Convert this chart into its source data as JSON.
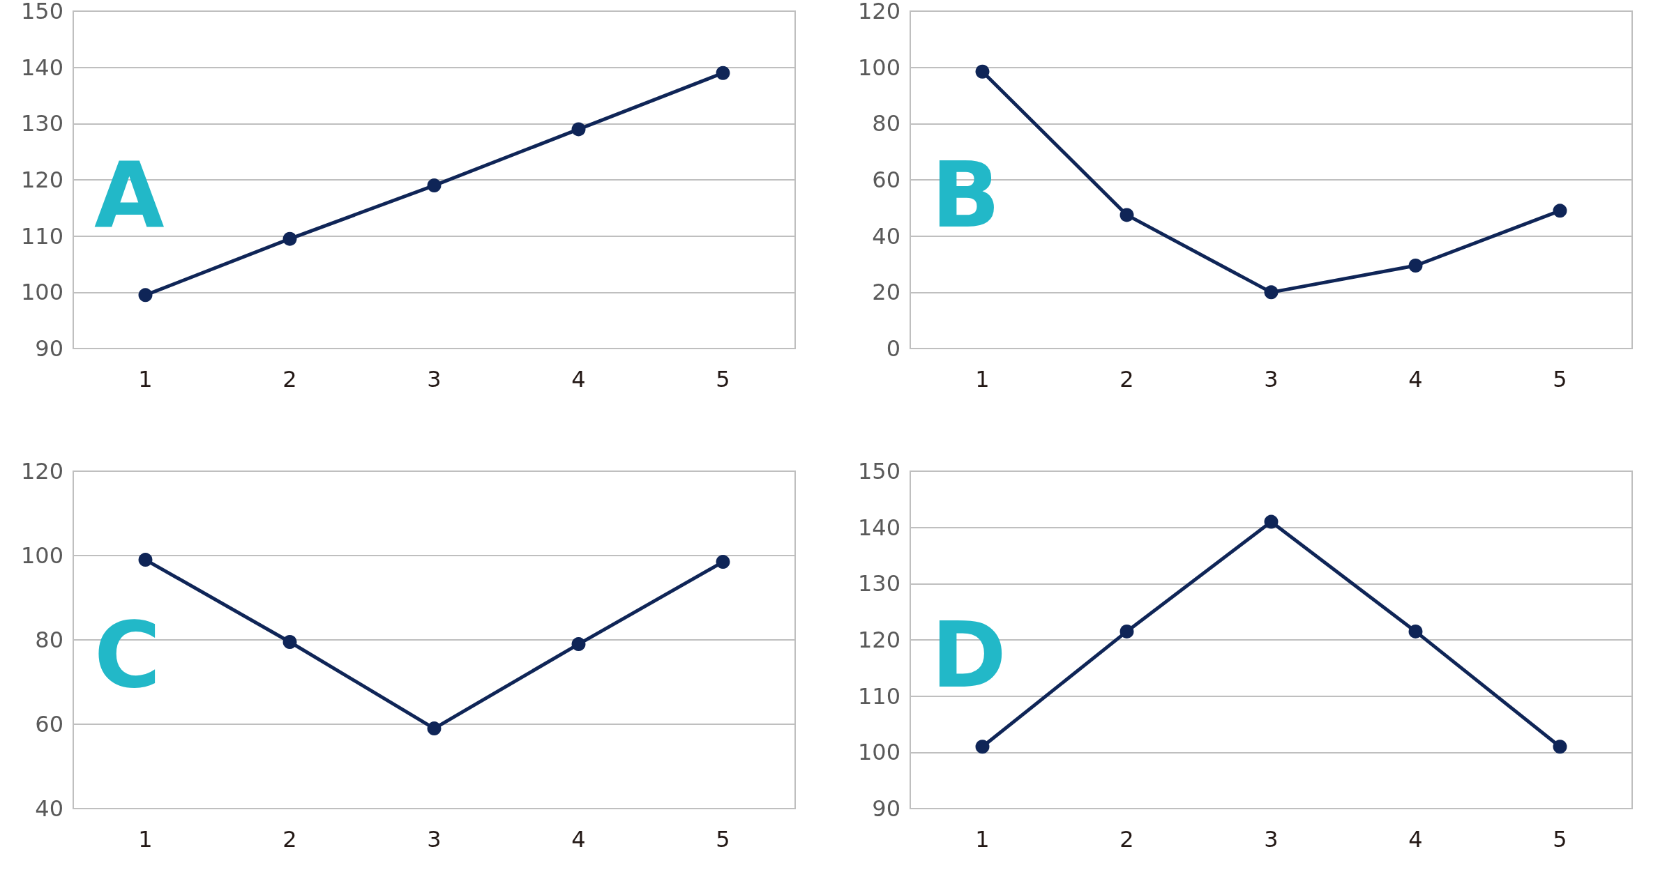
{
  "chart_data": [
    {
      "type": "line",
      "categories": [
        "1",
        "2",
        "3",
        "4",
        "5"
      ],
      "values": [
        99.5,
        109.5,
        119,
        129,
        139
      ],
      "color": "#0f2557",
      "ylim": [
        90,
        150
      ],
      "yticks": [
        90,
        100,
        110,
        120,
        130,
        140,
        150
      ],
      "grid": "y",
      "marker": "circle",
      "line_style": "solid",
      "annotations": [
        "A"
      ]
    },
    {
      "type": "line",
      "categories": [
        "1",
        "2",
        "3",
        "4",
        "5"
      ],
      "values": [
        98.5,
        47.5,
        20,
        29.5,
        49
      ],
      "color": "#0f2557",
      "ylim": [
        0,
        120
      ],
      "yticks": [
        0,
        20,
        40,
        60,
        80,
        100,
        120
      ],
      "grid": "y",
      "marker": "circle",
      "line_style": "solid",
      "annotations": [
        "B"
      ]
    },
    {
      "type": "line",
      "categories": [
        "1",
        "2",
        "3",
        "4",
        "5"
      ],
      "values": [
        99,
        79.5,
        59,
        79,
        98.5
      ],
      "color": "#0f2557",
      "ylim": [
        40,
        120
      ],
      "yticks": [
        40,
        60,
        80,
        100,
        120
      ],
      "grid": "y",
      "marker": "circle",
      "line_style": "solid",
      "annotations": [
        "C"
      ]
    },
    {
      "type": "line",
      "categories": [
        "1",
        "2",
        "3",
        "4",
        "5"
      ],
      "values": [
        101,
        121.5,
        141,
        121.5,
        101
      ],
      "color": "#0f2557",
      "ylim": [
        90,
        150
      ],
      "yticks": [
        90,
        100,
        110,
        120,
        130,
        140,
        150
      ],
      "grid": "y",
      "marker": "circle",
      "line_style": "solid",
      "annotations": [
        "D"
      ]
    }
  ]
}
